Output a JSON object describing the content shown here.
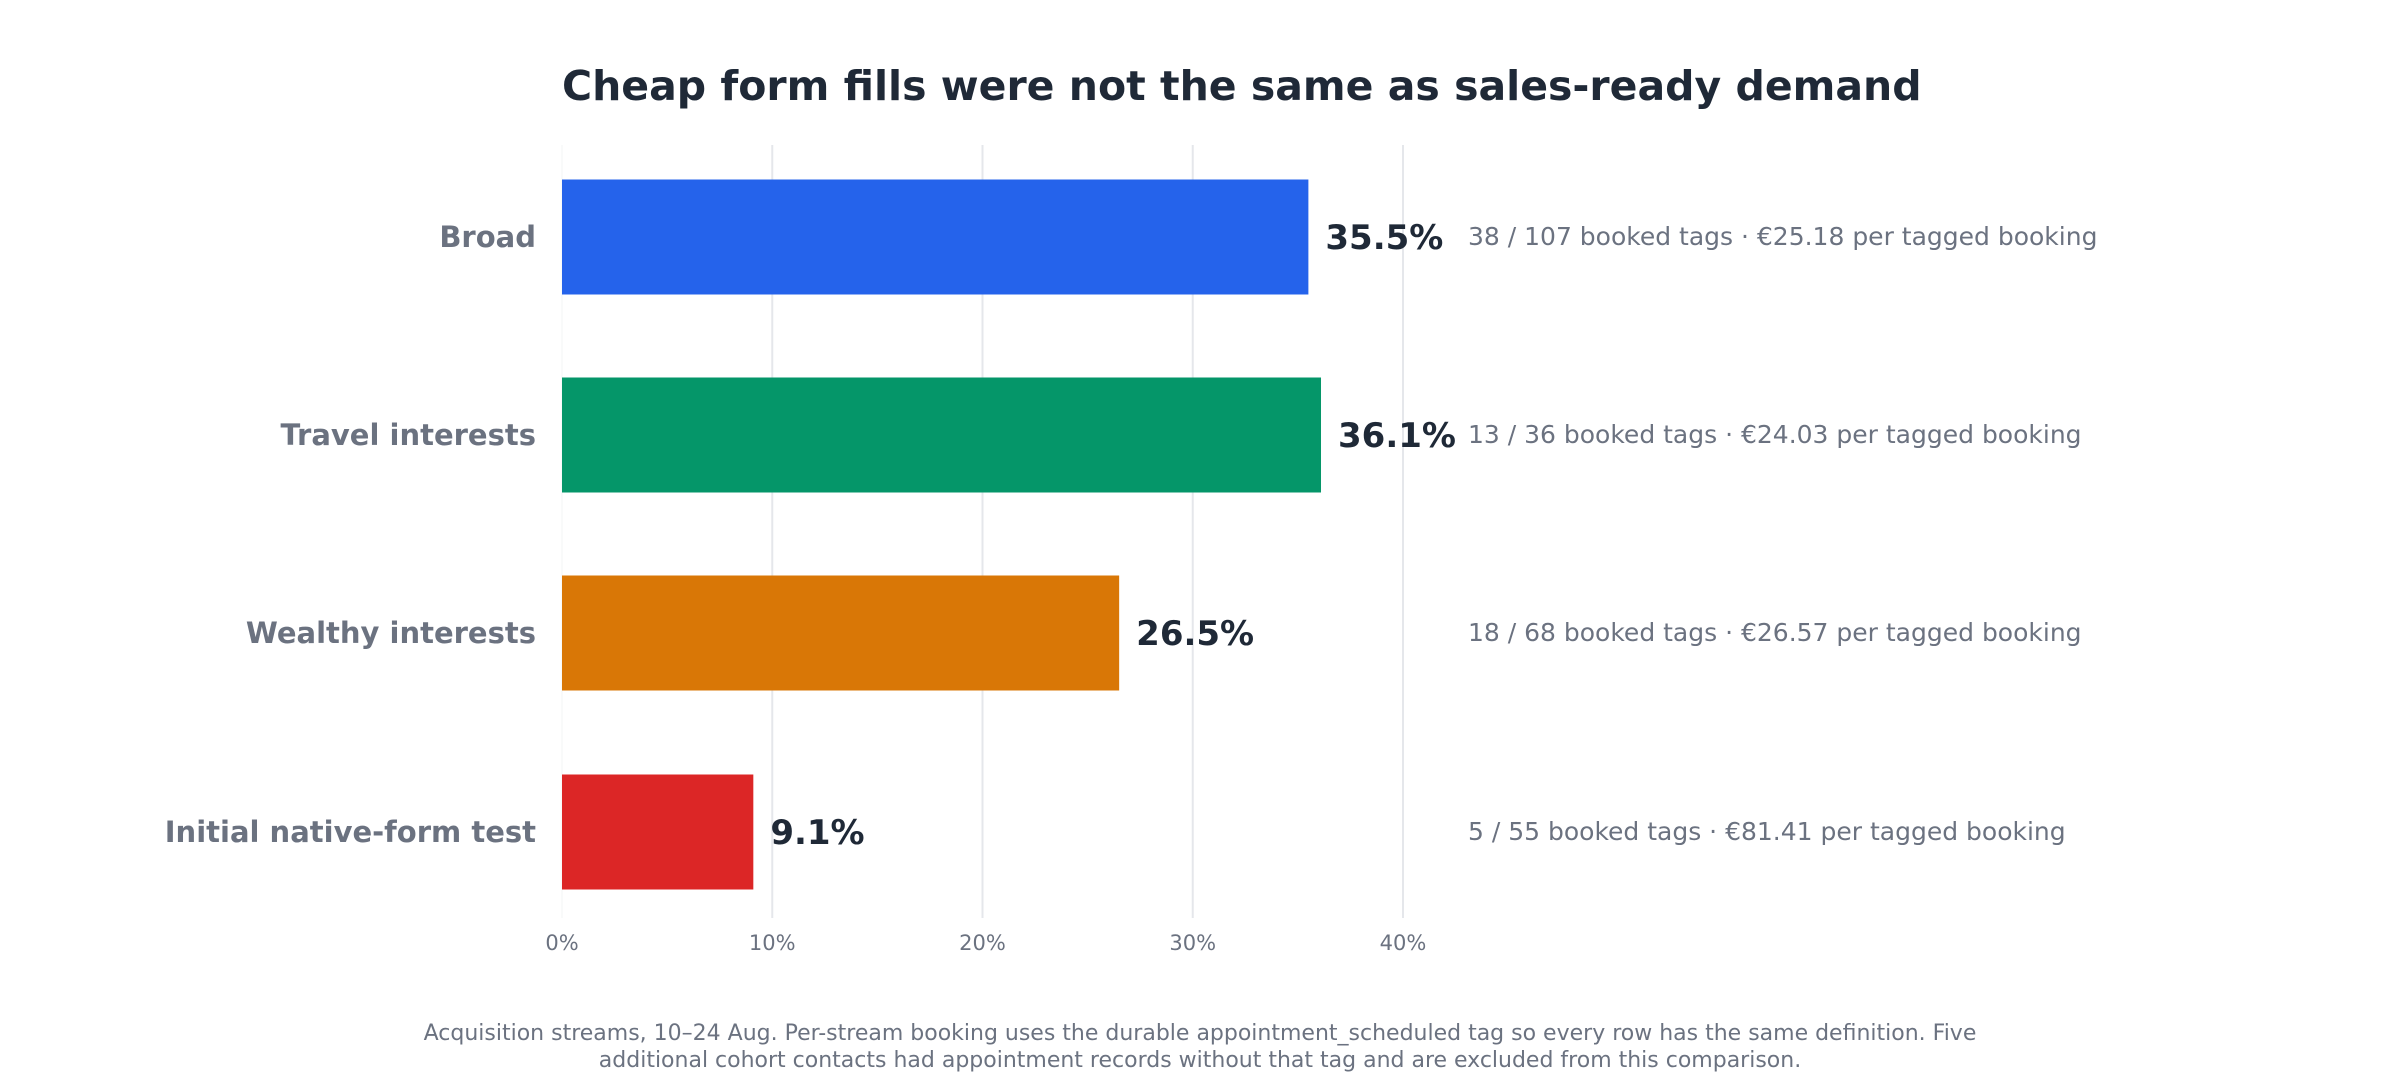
{
  "chart_data": {
    "type": "bar",
    "orientation": "horizontal",
    "title": "Cheap form fills were not the same as sales-ready demand",
    "xlabel": "",
    "ylabel": "",
    "xlim": [
      0,
      40
    ],
    "x_ticks": [
      0,
      10,
      20,
      30,
      40
    ],
    "x_tick_labels": [
      "0%",
      "10%",
      "20%",
      "30%",
      "40%"
    ],
    "grid": "vertical",
    "legend": "none",
    "categories": [
      "Broad",
      "Travel interests",
      "Wealthy interests",
      "Initial native-form test"
    ],
    "values": [
      35.5,
      36.1,
      26.5,
      9.1
    ],
    "value_labels": [
      "35.5%",
      "36.1%",
      "26.5%",
      "9.1%"
    ],
    "bar_colors": [
      "#2563eb",
      "#059669",
      "#d97706",
      "#dc2626"
    ],
    "annotations": [
      "38 / 107 booked tags  ·  €25.18 per tagged booking",
      "13 / 36 booked tags  ·  €24.03 per tagged booking",
      "18 / 68 booked tags  ·  €26.57 per tagged booking",
      "5 / 55 booked tags  ·  €81.41 per tagged booking"
    ]
  },
  "footnote": {
    "line1": "Acquisition streams, 10–24 Aug. Per-stream booking uses the durable appointment_scheduled tag so every row has the same definition. Five",
    "line2": "additional cohort contacts had appointment records without that tag and are excluded from this comparison."
  }
}
